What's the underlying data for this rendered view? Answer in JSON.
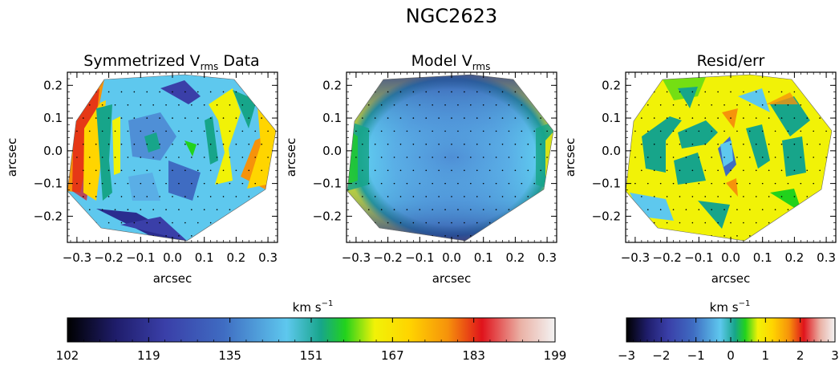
{
  "title": "NGC2623",
  "chart_data": [
    {
      "type": "heatmap",
      "title": "Symmetrized V",
      "title_sub": "rms",
      "title_suffix": " Data",
      "xlabel": "arcsec",
      "ylabel": "arcsec",
      "xlim": [
        -0.33,
        0.33
      ],
      "ylim": [
        -0.28,
        0.24
      ],
      "x_ticks": [
        "−0.3",
        "−0.2",
        "−0.1",
        "0.0",
        "0.1",
        "0.2",
        "0.3"
      ],
      "y_ticks": [
        "0.2",
        "0.1",
        "0.0",
        "−0.1",
        "−0.2"
      ],
      "colorbar_ref": "vrms_colorbar"
    },
    {
      "type": "heatmap",
      "title": "Model V",
      "title_sub": "rms",
      "title_suffix": "",
      "xlabel": "arcsec",
      "ylabel": "arcsec",
      "xlim": [
        -0.33,
        0.33
      ],
      "ylim": [
        -0.28,
        0.24
      ],
      "x_ticks": [
        "−0.3",
        "−0.2",
        "−0.1",
        "0.0",
        "0.1",
        "0.2",
        "0.3"
      ],
      "y_ticks": [
        "0.2",
        "0.1",
        "0.0",
        "−0.1",
        "−0.2"
      ],
      "colorbar_ref": "vrms_colorbar"
    },
    {
      "type": "heatmap",
      "title": "Resid/err",
      "title_sub": "",
      "title_suffix": "",
      "xlabel": "arcsec",
      "ylabel": "arcsec",
      "xlim": [
        -0.33,
        0.33
      ],
      "ylim": [
        -0.28,
        0.24
      ],
      "x_ticks": [
        "−0.3",
        "−0.2",
        "−0.1",
        "0.0",
        "0.1",
        "0.2",
        "0.3"
      ],
      "y_ticks": [
        "0.2",
        "0.1",
        "0.0",
        "−0.1",
        "−0.2"
      ],
      "colorbar_ref": "resid_colorbar"
    }
  ],
  "colorbars": {
    "vrms_colorbar": {
      "label": "km s",
      "label_exp": "−1",
      "range": [
        102,
        199
      ],
      "ticks": [
        "102",
        "119",
        "135",
        "151",
        "167",
        "183",
        "199"
      ]
    },
    "resid_colorbar": {
      "label": "km s",
      "label_exp": "−1",
      "range": [
        -3,
        3
      ],
      "ticks": [
        "−3",
        "−2",
        "−1",
        "0",
        "1",
        "2",
        "3"
      ]
    }
  },
  "colormap": [
    "#000000",
    "#1f1d6b",
    "#3a3fa8",
    "#3f6cc2",
    "#5ec8ee",
    "#17a58a",
    "#22d21c",
    "#f1f207",
    "#ffd500",
    "#f6920b",
    "#e0131b",
    "#eab2a6",
    "#f3f3f3"
  ]
}
